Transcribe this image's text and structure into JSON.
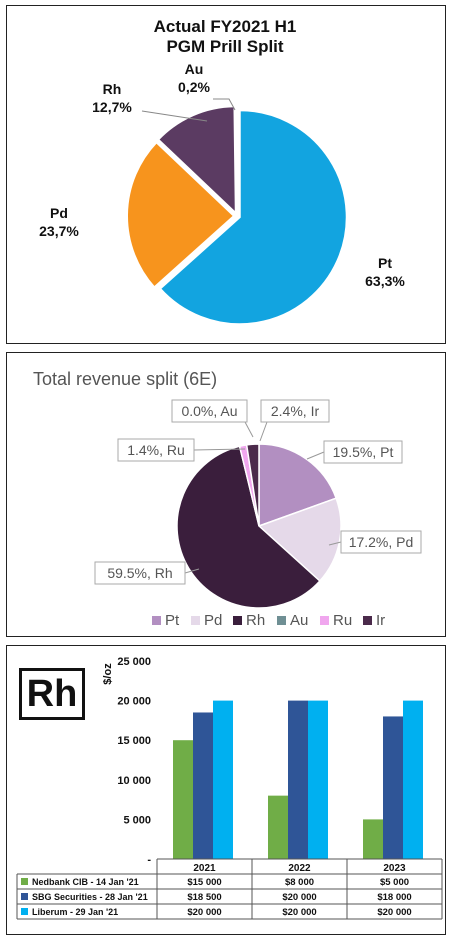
{
  "chart_data": [
    {
      "type": "pie",
      "title": "Actual FY2021 H1",
      "subtitle": "PGM Prill Split",
      "slices": [
        {
          "label": "Pt",
          "value": 63.3,
          "display": "63,3%",
          "color": "#12a4e0"
        },
        {
          "label": "Pd",
          "value": 23.7,
          "display": "23,7%",
          "color": "#f7941d"
        },
        {
          "label": "Rh",
          "value": 12.7,
          "display": "12,7%",
          "color": "#5b3b62"
        },
        {
          "label": "Au",
          "value": 0.2,
          "display": "0,2%",
          "color": "#b8b8b8"
        }
      ]
    },
    {
      "type": "pie",
      "title": "Total revenue split (6E)",
      "legend_position": "bottom",
      "slices": [
        {
          "label": "Pt",
          "value": 19.5,
          "display": "19.5%, Pt",
          "color": "#b28fc1"
        },
        {
          "label": "Pd",
          "value": 17.2,
          "display": "17.2%, Pd",
          "color": "#e5d9e9"
        },
        {
          "label": "Rh",
          "value": 59.5,
          "display": "59.5%, Rh",
          "color": "#3a1e3c"
        },
        {
          "label": "Au",
          "value": 0.0,
          "display": "0.0%, Au",
          "color": "#6f8f94"
        },
        {
          "label": "Ru",
          "value": 1.4,
          "display": "1.4%, Ru",
          "color": "#f0a6ee"
        },
        {
          "label": "Ir",
          "value": 2.4,
          "display": "2.4%, Ir",
          "color": "#4b2a4b"
        }
      ]
    },
    {
      "type": "bar",
      "badge": "Rh",
      "ylabel": "$/oz",
      "ylim": [
        0,
        25000
      ],
      "yticks": [
        "-",
        "5 000",
        "10 000",
        "15 000",
        "20 000",
        "25 000"
      ],
      "categories": [
        "2021",
        "2022",
        "2023"
      ],
      "series": [
        {
          "name": "Nedbank CIB - 14 Jan '21",
          "values": [
            15000,
            8000,
            5000
          ],
          "cells": [
            "$15 000",
            "$8 000",
            "$5 000"
          ],
          "color": "#70ad47"
        },
        {
          "name": "SBG Securities - 28 Jan '21",
          "values": [
            18500,
            20000,
            18000
          ],
          "cells": [
            "$18 500",
            "$20 000",
            "$18 000"
          ],
          "color": "#2f5597"
        },
        {
          "name": "Liberum - 29 Jan '21",
          "values": [
            20000,
            20000,
            20000
          ],
          "cells": [
            "$20 000",
            "$20 000",
            "$20 000"
          ],
          "color": "#00b0f0"
        }
      ]
    }
  ]
}
